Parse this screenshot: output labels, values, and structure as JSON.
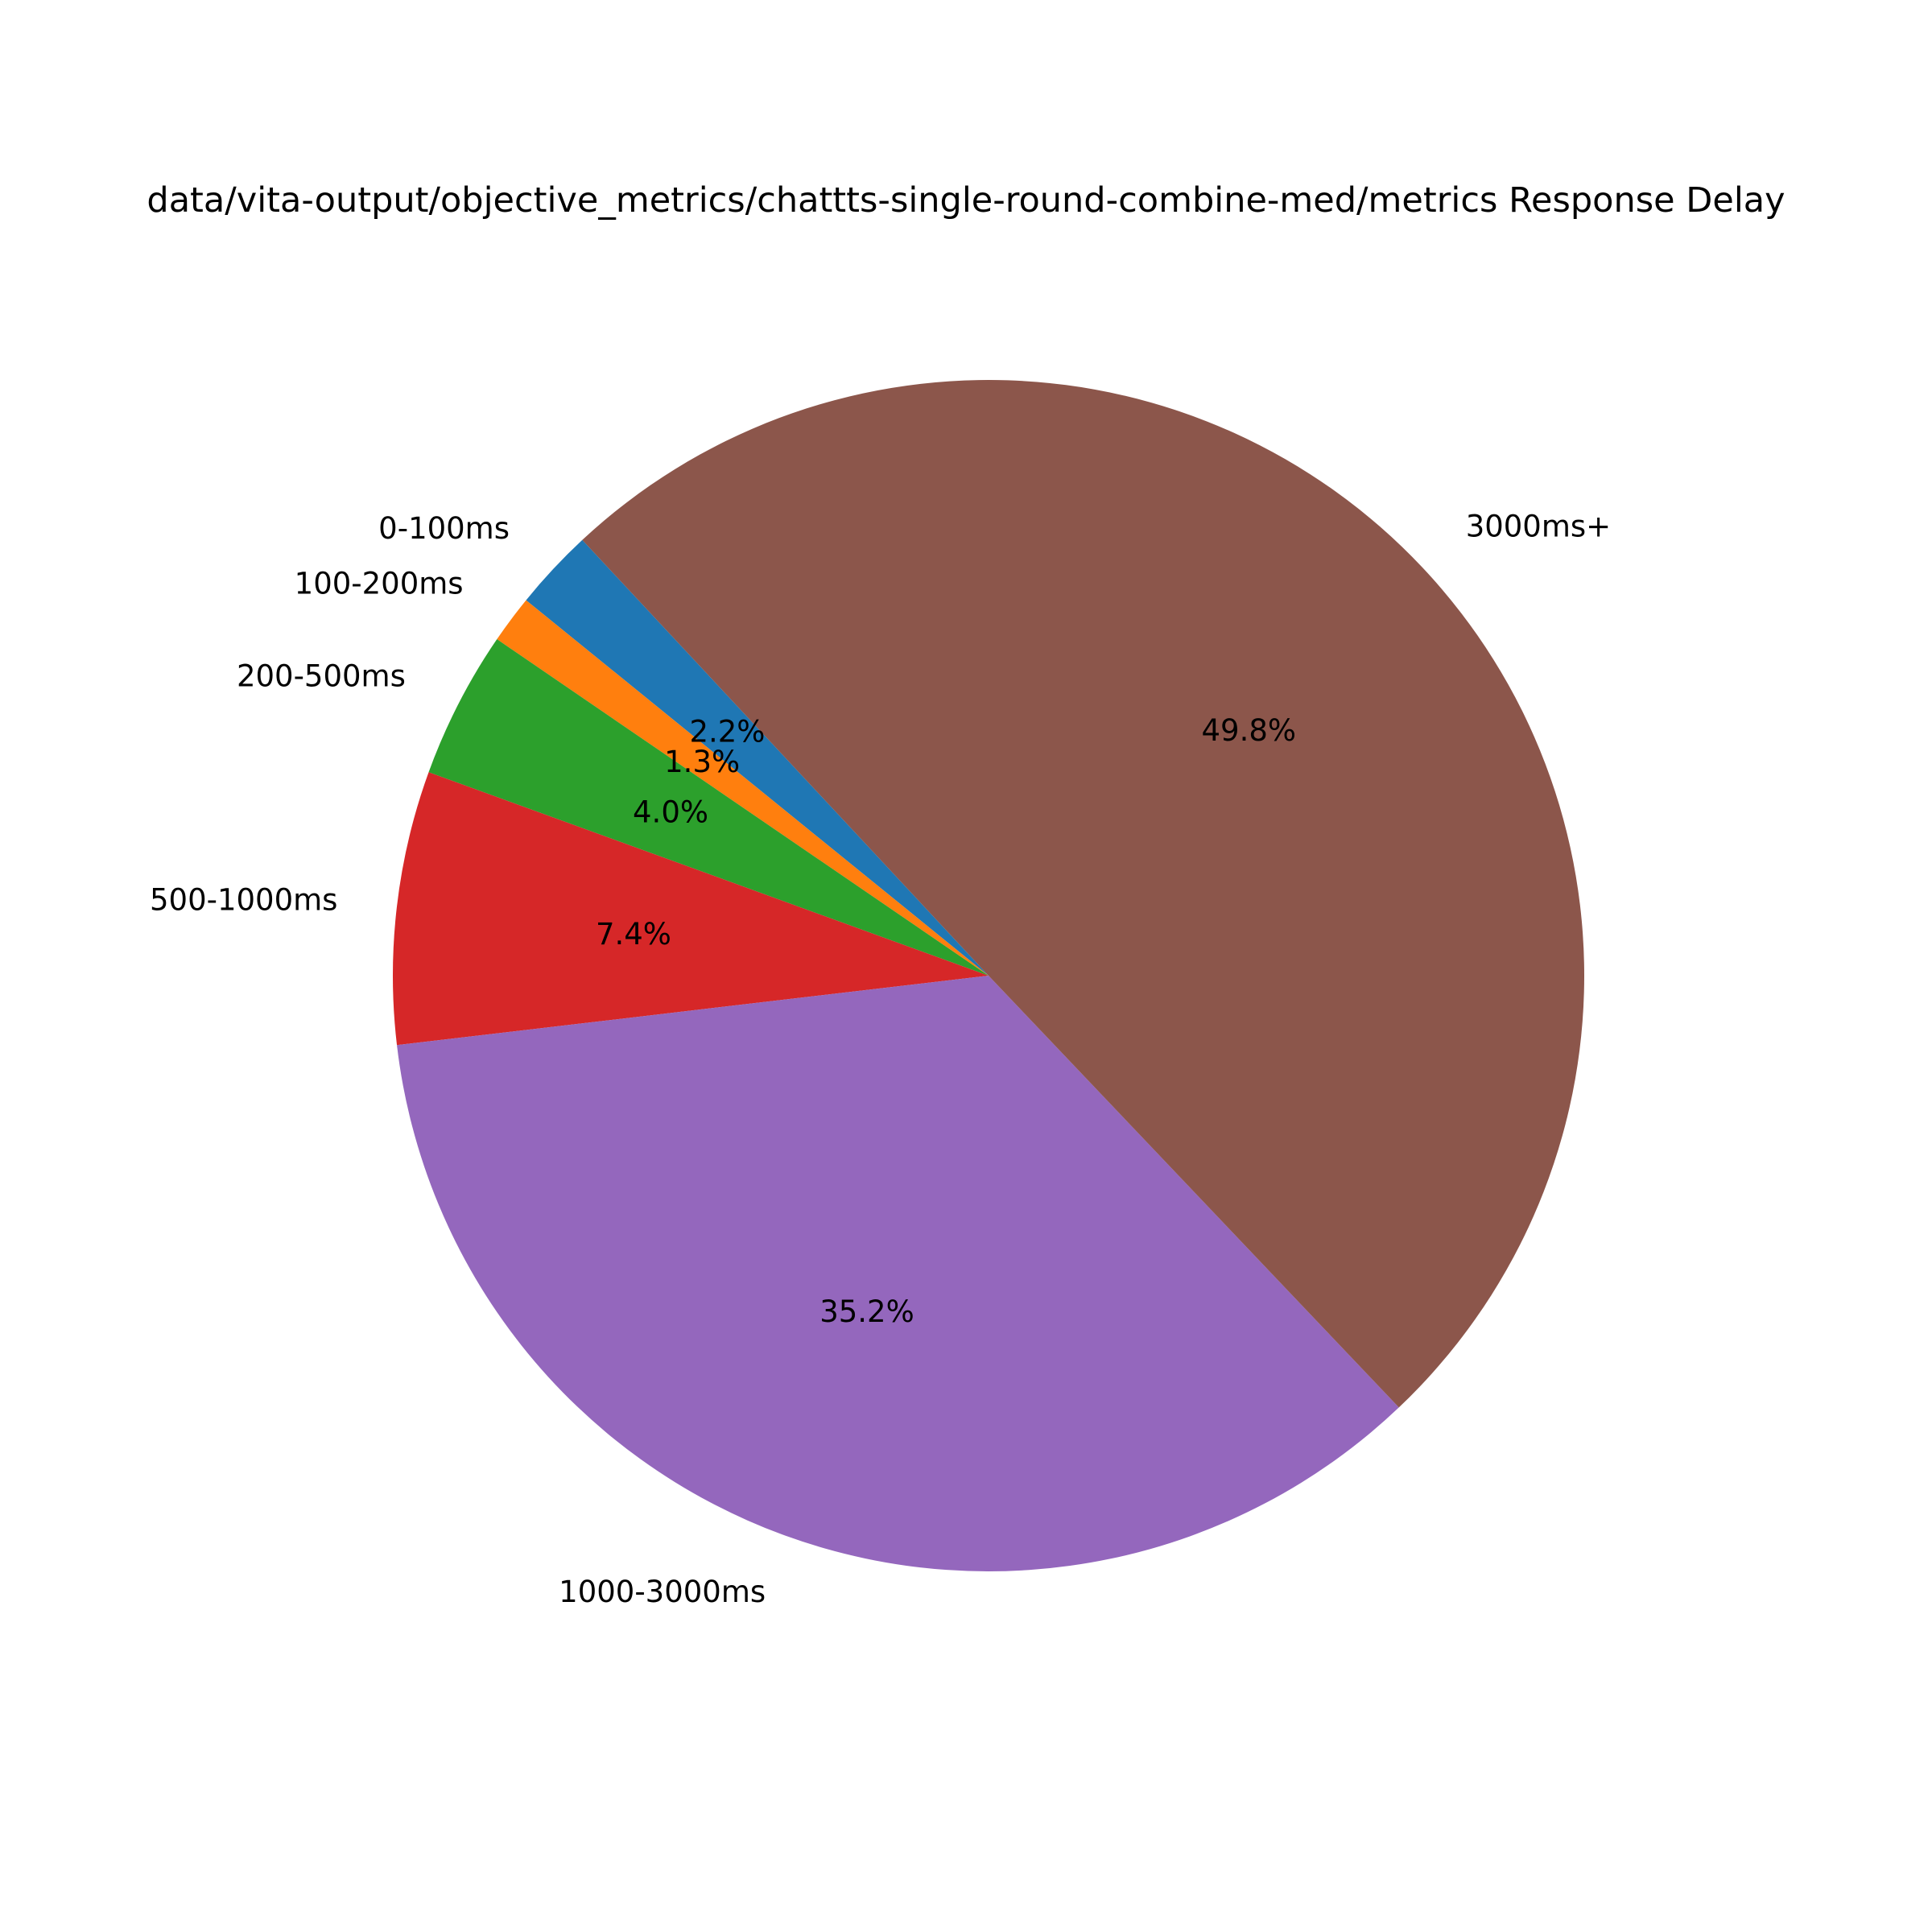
{
  "chart_data": {
    "type": "pie",
    "title": "data/vita-output/objective_metrics/chattts-single-round-combine-med/metrics Response Delay",
    "categories": [
      "0-100ms",
      "100-200ms",
      "200-500ms",
      "500-1000ms",
      "1000-3000ms",
      "3000ms+"
    ],
    "values": [
      2.2,
      1.3,
      4.0,
      7.4,
      35.2,
      49.8
    ],
    "value_labels": [
      "2.2%",
      "1.3%",
      "4.0%",
      "7.4%",
      "35.2%",
      "49.8%"
    ],
    "colors": [
      "#1f77b4",
      "#ff7f0e",
      "#2ca02c",
      "#d62728",
      "#9467bd",
      "#8c564b"
    ],
    "start_angle_deg": 133,
    "direction": "counterclockwise",
    "legend": "none"
  }
}
